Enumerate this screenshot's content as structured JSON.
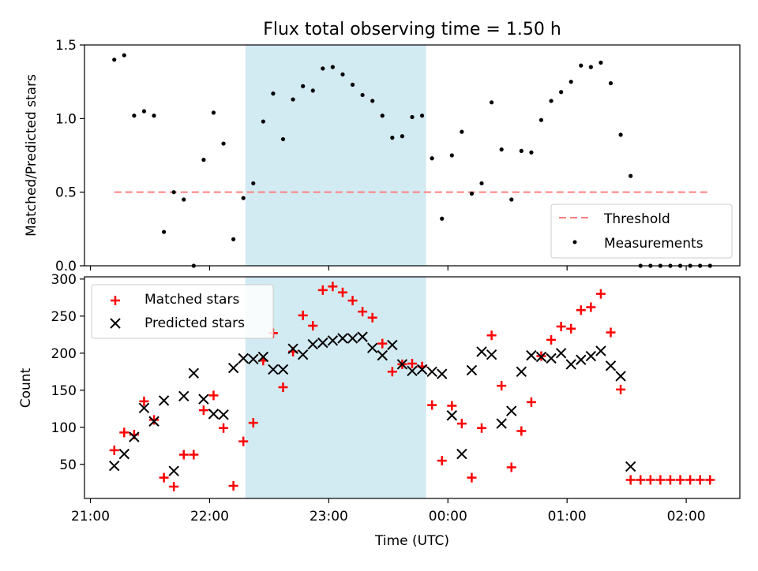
{
  "title": "Flux total observing time = 1.50 h",
  "colors": {
    "shade": "#add8e6",
    "threshold": "#ff7f7f",
    "measurements": "#000000",
    "matched": "#ff0000",
    "predicted": "#000000"
  },
  "chart_data": [
    {
      "type": "scatter",
      "panel": "top",
      "ylabel": "Matched/Predicted stars",
      "xlabel": "",
      "ylim": [
        0,
        1.5
      ],
      "yticks": [
        "0.0",
        "0.5",
        "1.0",
        "1.5"
      ],
      "xlim_minutes": [
        1257,
        1587
      ],
      "shaded_span_minutes": [
        1338,
        1429
      ],
      "legend": {
        "position": "lower right",
        "threshold_label": "Threshold",
        "measurements_label": "Measurements"
      },
      "threshold": {
        "value": 0.5,
        "x_start": 1272,
        "x_end": 1572
      },
      "measurements": {
        "x": [
          1272,
          1277,
          1282,
          1287,
          1292,
          1297,
          1302,
          1307,
          1312,
          1317,
          1322,
          1327,
          1332,
          1337,
          1342,
          1347,
          1352,
          1357,
          1362,
          1367,
          1372,
          1377,
          1382,
          1387,
          1392,
          1397,
          1402,
          1407,
          1412,
          1417,
          1422,
          1427,
          1432,
          1437,
          1442,
          1447,
          1452,
          1457,
          1462,
          1467,
          1472,
          1477,
          1482,
          1487,
          1492,
          1497,
          1502,
          1507,
          1512,
          1517,
          1522,
          1527,
          1532,
          1537,
          1542,
          1547,
          1552,
          1557,
          1562,
          1567,
          1572
        ],
        "y": [
          1.4,
          1.43,
          1.02,
          1.05,
          1.02,
          0.23,
          0.5,
          0.45,
          0.0,
          0.72,
          1.04,
          0.83,
          0.18,
          0.46,
          0.56,
          0.98,
          1.17,
          0.86,
          1.13,
          1.22,
          1.19,
          1.34,
          1.35,
          1.3,
          1.23,
          1.16,
          1.12,
          1.02,
          0.87,
          0.88,
          1.01,
          1.02,
          0.73,
          0.32,
          0.75,
          0.91,
          0.49,
          0.56,
          1.11,
          0.79,
          0.45,
          0.78,
          0.77,
          0.99,
          1.12,
          1.18,
          1.25,
          1.36,
          1.35,
          1.38,
          1.24,
          0.89,
          0.61,
          0.0,
          0.0,
          0.0,
          0.0,
          0.0,
          0.0,
          0.0,
          0.0
        ]
      }
    },
    {
      "type": "scatter",
      "panel": "bottom",
      "ylabel": "Count",
      "xlabel": "Time (UTC)",
      "ylim": [
        4,
        303
      ],
      "yticks": [
        "50",
        "100",
        "150",
        "200",
        "250",
        "300"
      ],
      "ytick_values": [
        50,
        100,
        150,
        200,
        250,
        300
      ],
      "xlim_minutes": [
        1257,
        1587
      ],
      "xticks": [
        "21:00",
        "22:00",
        "23:00",
        "00:00",
        "01:00",
        "02:00"
      ],
      "xtick_minutes": [
        1260,
        1320,
        1380,
        1440,
        1500,
        1560
      ],
      "shaded_span_minutes": [
        1338,
        1429
      ],
      "legend": {
        "position": "upper left",
        "matched_label": "Matched stars",
        "predicted_label": "Predicted stars"
      },
      "series": [
        {
          "name": "Matched stars",
          "marker": "+",
          "x": [
            1272,
            1277,
            1282,
            1287,
            1292,
            1297,
            1302,
            1307,
            1312,
            1317,
            1322,
            1327,
            1332,
            1337,
            1342,
            1347,
            1352,
            1357,
            1362,
            1367,
            1372,
            1377,
            1382,
            1387,
            1392,
            1397,
            1402,
            1407,
            1412,
            1417,
            1422,
            1427,
            1432,
            1437,
            1442,
            1447,
            1452,
            1457,
            1462,
            1467,
            1472,
            1477,
            1482,
            1487,
            1492,
            1497,
            1502,
            1507,
            1512,
            1517,
            1522,
            1527,
            1532,
            1537,
            1542,
            1547,
            1552,
            1557,
            1562,
            1567,
            1572
          ],
          "y": [
            69,
            93,
            90,
            135,
            110,
            32,
            20,
            63,
            63,
            123,
            143,
            99,
            21,
            81,
            106,
            190,
            227,
            154,
            202,
            251,
            237,
            285,
            290,
            282,
            271,
            256,
            248,
            213,
            175,
            185,
            186,
            182,
            130,
            55,
            129,
            105,
            32,
            99,
            224,
            156,
            46,
            95,
            134,
            196,
            218,
            236,
            233,
            258,
            262,
            280,
            228,
            151,
            29,
            29,
            29,
            29,
            29,
            29,
            29,
            29,
            29
          ]
        },
        {
          "name": "Predicted stars",
          "marker": "x",
          "x": [
            1272,
            1277,
            1282,
            1287,
            1292,
            1297,
            1302,
            1307,
            1312,
            1317,
            1322,
            1327,
            1332,
            1337,
            1342,
            1347,
            1352,
            1357,
            1362,
            1367,
            1372,
            1377,
            1382,
            1387,
            1392,
            1397,
            1402,
            1407,
            1412,
            1417,
            1422,
            1427,
            1432,
            1437,
            1442,
            1447,
            1452,
            1457,
            1462,
            1467,
            1472,
            1477,
            1482,
            1487,
            1492,
            1497,
            1502,
            1507,
            1512,
            1517,
            1522,
            1527,
            1532
          ],
          "y": [
            48,
            64,
            87,
            126,
            108,
            136,
            41,
            142,
            173,
            138,
            118,
            117,
            180,
            193,
            192,
            195,
            178,
            178,
            206,
            198,
            212,
            214,
            217,
            220,
            220,
            222,
            207,
            197,
            211,
            185,
            176,
            178,
            175,
            172,
            116,
            64,
            177,
            202,
            198,
            105,
            122,
            175,
            197,
            195,
            193,
            200,
            185,
            191,
            196,
            203,
            183,
            169,
            47
          ]
        }
      ]
    }
  ]
}
